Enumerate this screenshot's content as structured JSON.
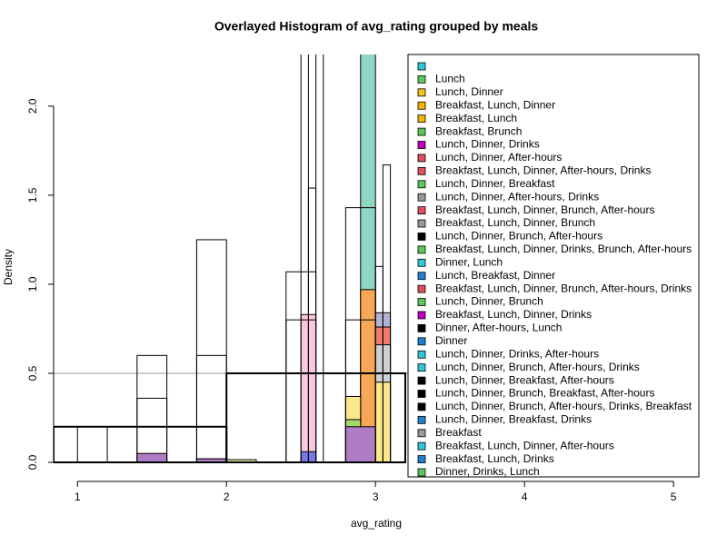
{
  "chart_data": {
    "type": "histogram",
    "title": "Overlayed Histogram of avg_rating grouped by meals",
    "x_label": "avg_rating",
    "y_label": "Density",
    "xlim": [
      0.84,
      5.17
    ],
    "ylim": [
      -0.107,
      2.29
    ],
    "xticks": [
      1,
      2,
      3,
      4,
      5
    ],
    "yticks": [
      {
        "value": 0,
        "label": "0.0"
      },
      {
        "value": 0.5,
        "label": "0.5"
      },
      {
        "value": 1,
        "label": "1.0"
      },
      {
        "value": 1.5,
        "label": "1.5"
      },
      {
        "value": 2,
        "label": "2.0"
      }
    ],
    "reference_lines": [
      0.5
    ],
    "legend": "right",
    "series": [
      {
        "name": null,
        "color": "#2ec8d8"
      },
      {
        "name": "Lunch",
        "color": "#5cc85c",
        "fill": "#8fd6c4",
        "bins": [
          2.9,
          3.0
        ],
        "values": [
          2.5
        ]
      },
      {
        "name": "Lunch, Dinner",
        "color": "#f5c518",
        "fill": "#fbc7df",
        "bins": [
          2.5,
          2.6,
          2.7,
          2.8,
          2.9,
          3.0
        ],
        "values": [
          0.83,
          0,
          0,
          0,
          0.8
        ]
      },
      {
        "name": "Breakfast, Lunch, Dinner",
        "color": "#f5b400",
        "fill": "#f7a857",
        "bins": [
          2.9,
          3.0
        ],
        "values": [
          0.97
        ]
      },
      {
        "name": "Breakfast, Lunch",
        "color": "#f5b400"
      },
      {
        "name": "Breakfast, Brunch",
        "color": "#5cc85c"
      },
      {
        "name": "Lunch, Dinner, Drinks",
        "color": "#c000c0",
        "fill": "#b4b4d8",
        "bins": [
          3.0,
          3.1
        ],
        "values": [
          0.84
        ]
      },
      {
        "name": "Lunch, Dinner, After-hours",
        "color": "#e0505a",
        "fill": "#f47a6b",
        "bins": [
          3.0,
          3.1
        ],
        "values": [
          0.76
        ]
      },
      {
        "name": "Breakfast, Lunch, Dinner, After-hours, Drinks",
        "color": "#e0505a"
      },
      {
        "name": "Lunch, Dinner, Breakfast",
        "color": "#5cc85c"
      },
      {
        "name": "Lunch, Dinner, After-hours, Drinks",
        "color": "#999999",
        "fill": "#d0d0d0",
        "bins": [
          3.0,
          3.1
        ],
        "values": [
          0.66
        ]
      },
      {
        "name": "Breakfast, Lunch, Dinner, Brunch, After-hours",
        "color": "#e0505a",
        "fill": "#fbe88a",
        "bins": [
          2.8,
          2.9,
          3.0,
          3.1
        ],
        "values": [
          0.37,
          0,
          0.45
        ]
      },
      {
        "name": "Breakfast, Lunch, Dinner, Brunch",
        "color": "#999999",
        "fill": "#a8d86a",
        "bins": [
          2.5,
          2.6,
          2.7,
          2.8,
          2.9
        ],
        "values": [
          0.03,
          0,
          0,
          0.24
        ]
      },
      {
        "name": "Lunch, Dinner, Brunch, After-hours",
        "color": "#000000",
        "bins": [
          1.0,
          1.2,
          1.4,
          1.6,
          1.8,
          2.0,
          2.2,
          2.4,
          2.6,
          2.8,
          3.0
        ],
        "values": [
          0.2,
          0,
          0.6,
          0,
          1.25,
          0,
          0,
          1.07,
          0,
          1.43
        ]
      },
      {
        "name": "Breakfast, Lunch, Dinner, Drinks, Brunch, After-hours",
        "color": "#5cc85c"
      },
      {
        "name": "Dinner, Lunch",
        "color": "#2ec8d8"
      },
      {
        "name": "Lunch, Breakfast, Dinner",
        "color": "#2080d0",
        "fill": "#7878e8",
        "bins": [
          1.8,
          2.0,
          2.5,
          2.6
        ],
        "values": [
          0.02,
          0,
          0.06
        ]
      },
      {
        "name": "Breakfast, Lunch, Dinner, Brunch, After-hours, Drinks",
        "color": "#e0505a"
      },
      {
        "name": "Lunch, Dinner, Brunch",
        "color": "#5cc85c",
        "fill": "#e8f0a0",
        "bins": [
          2.0,
          2.2
        ],
        "values": [
          0.015
        ]
      },
      {
        "name": "Breakfast, Lunch, Dinner, Drinks",
        "color": "#c000c0",
        "fill": "#b07cc6",
        "bins": [
          1.4,
          1.6,
          1.8,
          2.0,
          2.2,
          2.4,
          2.6,
          2.8,
          3.0
        ],
        "values": [
          0.05,
          0,
          0.02,
          0,
          0,
          0,
          0,
          0.2
        ]
      },
      {
        "name": "Dinner, After-hours, Lunch",
        "color": "#000000",
        "bins": [
          1.4,
          1.6,
          1.8,
          2.0,
          2.2,
          2.4,
          2.6,
          2.8,
          3.0
        ],
        "values": [
          0.36,
          0,
          0.6,
          0,
          0,
          0.8,
          0,
          0.8
        ]
      },
      {
        "name": "Dinner",
        "color": "#2080d0"
      },
      {
        "name": "Lunch, Dinner, Drinks, After-hours",
        "color": "#2ec8d8"
      },
      {
        "name": "Lunch, Dinner, Brunch, After-hours, Drinks",
        "color": "#2ec8d8"
      },
      {
        "name": "Lunch, Dinner, Breakfast, After-hours",
        "color": "#000000",
        "bins": [
          2.5,
          2.55,
          2.6,
          2.65
        ],
        "values": [
          2.5,
          1.54,
          2.5
        ]
      },
      {
        "name": "Lunch, Dinner, Brunch, Breakfast, After-hours",
        "color": "#000000",
        "line_width": 2,
        "bins": [
          0.84,
          2.0,
          3.2
        ],
        "values": [
          0.2,
          0.5
        ]
      },
      {
        "name": "Lunch, Dinner, Brunch, After-hours, Drinks, Breakfast",
        "color": "#000000",
        "bins": [
          3.0,
          3.05,
          3.1
        ],
        "values": [
          1.1,
          1.67
        ]
      },
      {
        "name": "Lunch, Dinner, Breakfast, Drinks",
        "color": "#2080d0"
      },
      {
        "name": "Breakfast",
        "color": "#999999"
      },
      {
        "name": "Breakfast, Lunch, Dinner, After-hours",
        "color": "#2ec8d8"
      },
      {
        "name": "Breakfast, Lunch, Drinks",
        "color": "#2080d0"
      },
      {
        "name": "Dinner, Drinks, Lunch",
        "color": "#5cc85c"
      }
    ]
  }
}
